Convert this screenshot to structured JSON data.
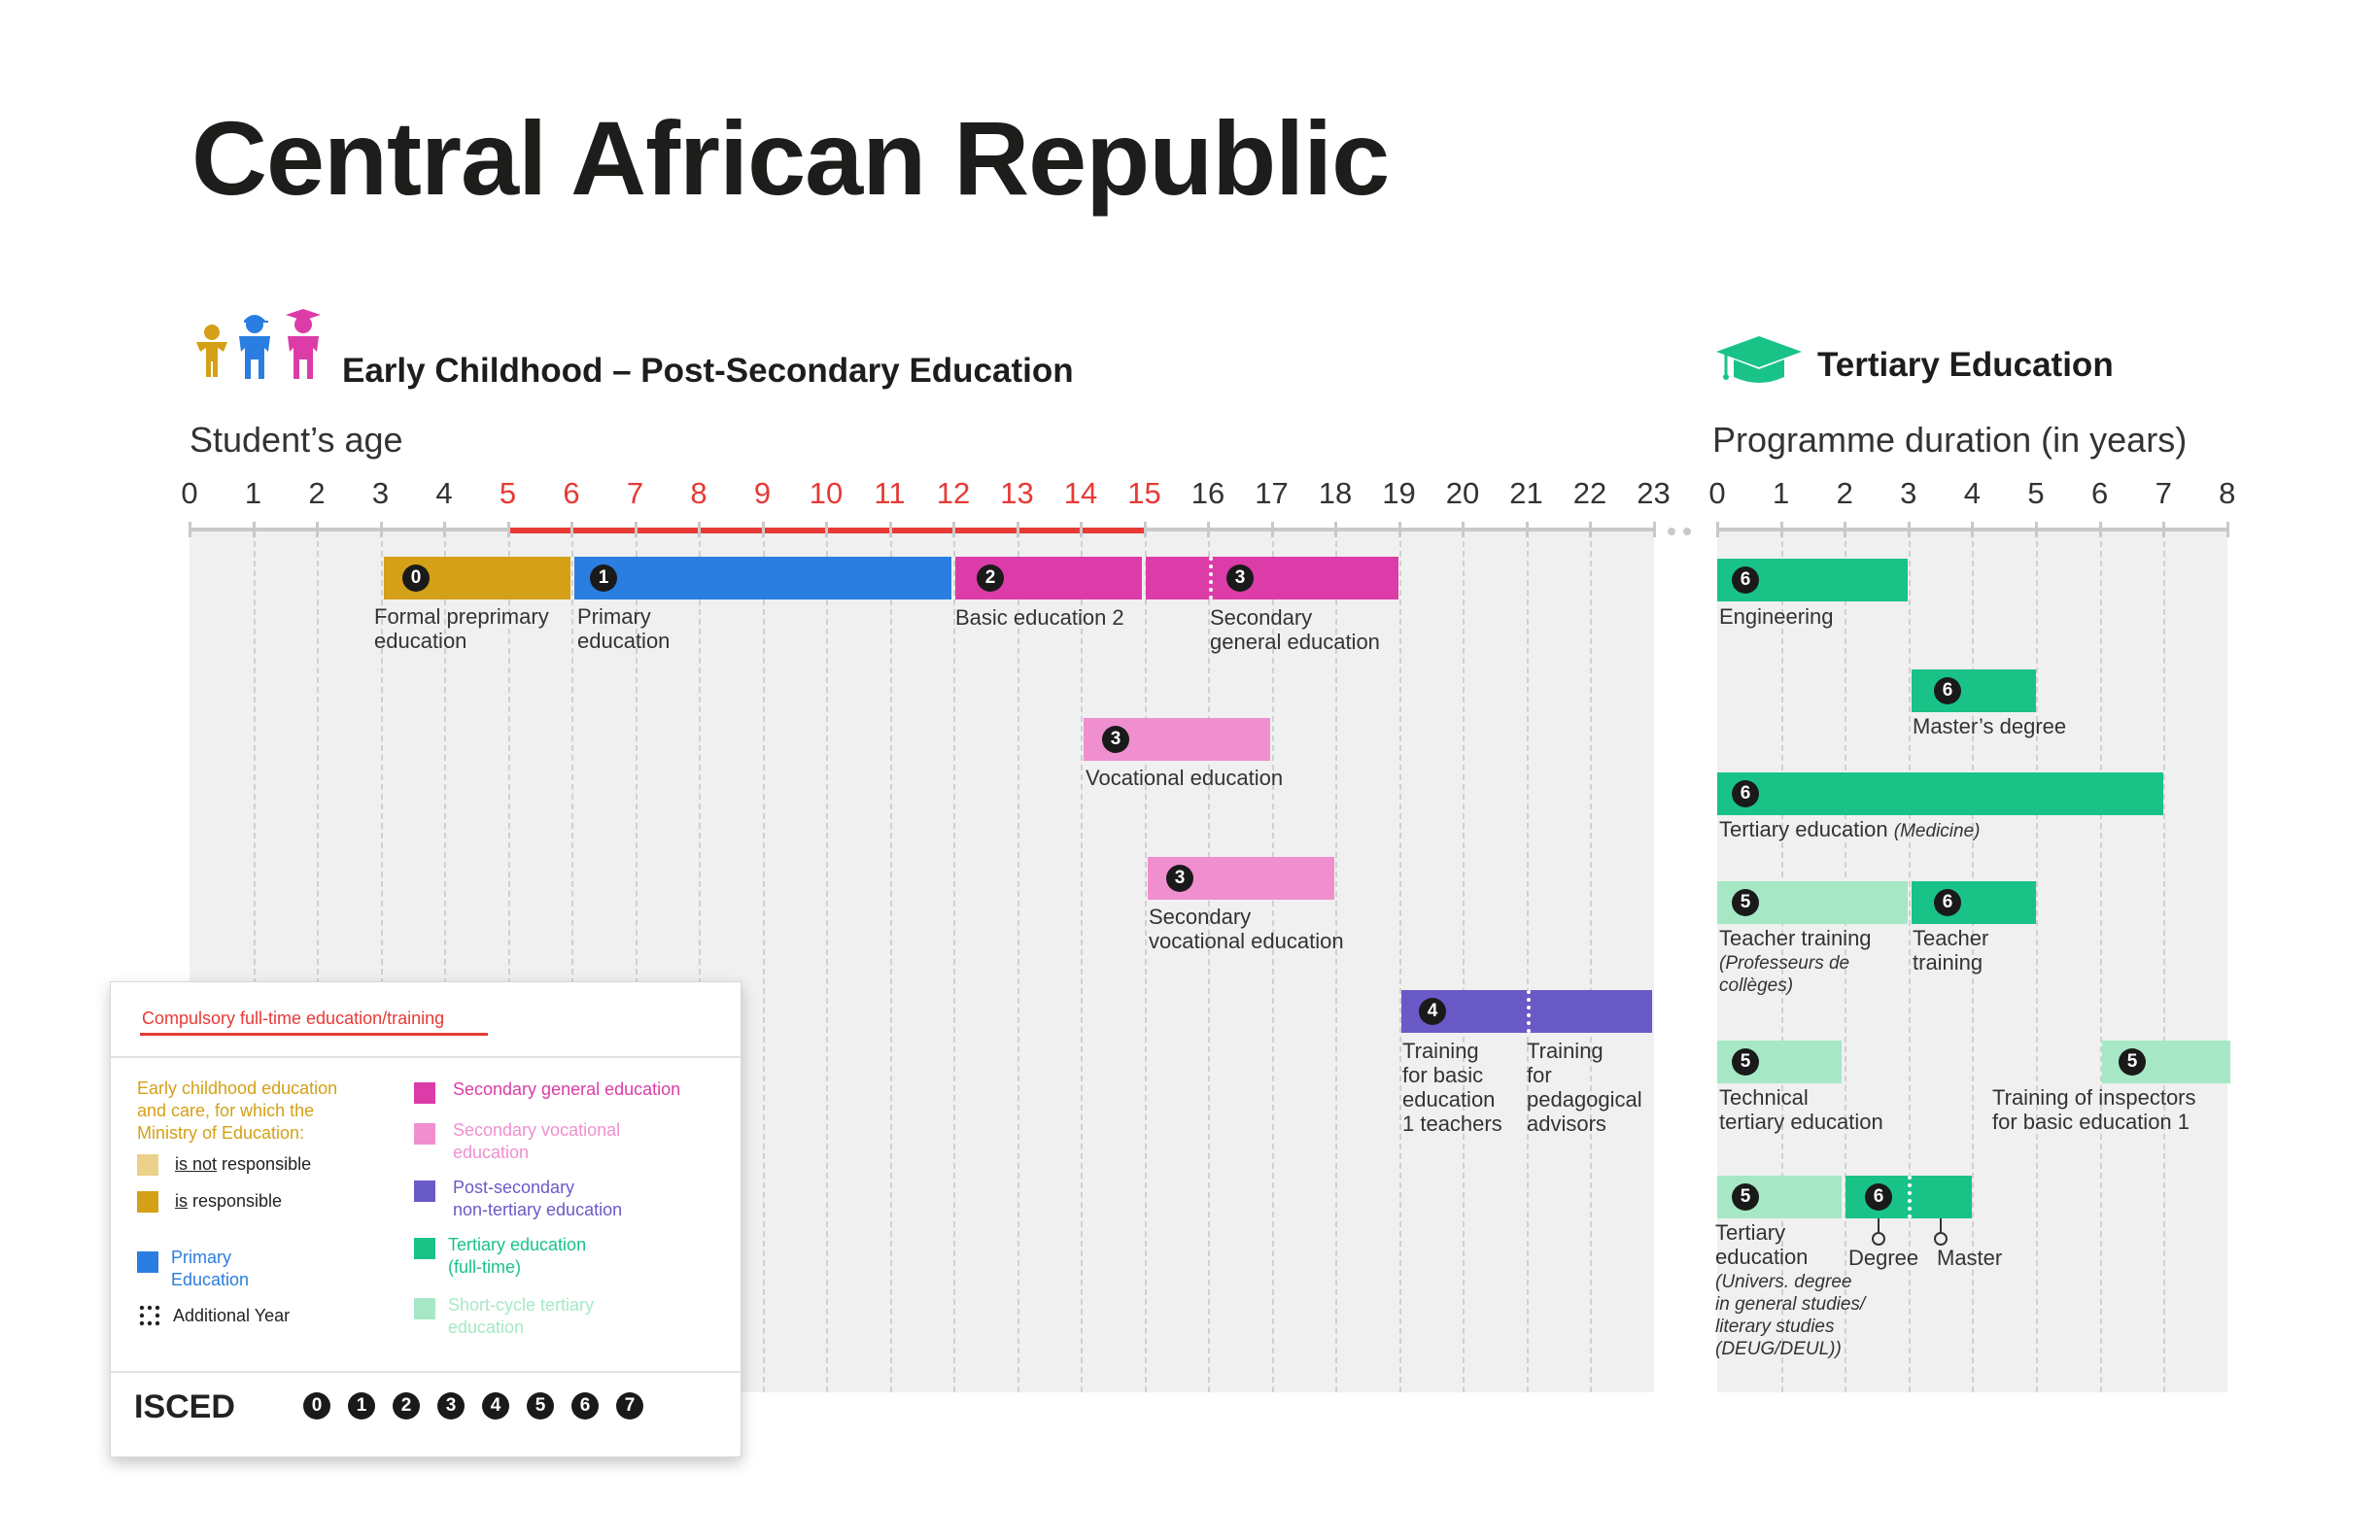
{
  "title": "Central African Republic",
  "sections": {
    "early": "Early Childhood – Post-Secondary Education",
    "tertiary": "Tertiary Education"
  },
  "axes": {
    "age_title": "Student’s age",
    "duration_title": "Programme duration (in years)",
    "age_ticks": [
      "0",
      "1",
      "2",
      "3",
      "4",
      "5",
      "6",
      "7",
      "8",
      "9",
      "10",
      "11",
      "12",
      "13",
      "14",
      "15",
      "16",
      "17",
      "18",
      "19",
      "20",
      "21",
      "22",
      "23"
    ],
    "duration_ticks": [
      "0",
      "1",
      "2",
      "3",
      "4",
      "5",
      "6",
      "7",
      "8"
    ],
    "compulsory_range": [
      5,
      15
    ]
  },
  "colors": {
    "preprimary": "#d4a017",
    "primary": "#2a7de1",
    "secondary_general": "#dc3ca8",
    "secondary_vocational": "#ef8fcf",
    "post_secondary": "#6a5ac8",
    "tertiary": "#19c388",
    "short_cycle": "#a6e8c6",
    "compulsory": "#e63a36",
    "preprimary_light": "#ebd08a"
  },
  "programmes": {
    "preprimary": {
      "isced": "0",
      "label": [
        "Formal preprimary",
        "education"
      ]
    },
    "primary": {
      "isced": "1",
      "label": [
        "Primary",
        "education"
      ]
    },
    "basic2": {
      "isced": "2",
      "label": [
        "Basic education 2"
      ]
    },
    "sec_general": {
      "isced": "3",
      "label": [
        "Secondary",
        "general education"
      ]
    },
    "vocational": {
      "isced": "3",
      "label": [
        "Vocational education"
      ]
    },
    "sec_vocational": {
      "isced": "3",
      "label": [
        "Secondary",
        "vocational education"
      ]
    },
    "teacher_basic": {
      "isced": "4",
      "label": [
        "Training",
        "for basic",
        "education",
        "1 teachers"
      ]
    },
    "teacher_ped": {
      "label": [
        "Training",
        "for",
        "pedagogical",
        "advisors"
      ]
    }
  },
  "tertiary": {
    "engineering": {
      "isced": "6",
      "label": "Engineering"
    },
    "masters": {
      "isced": "6",
      "label": "Master’s degree"
    },
    "medicine": {
      "isced": "6",
      "label": "Tertiary education",
      "note": "(Medicine)"
    },
    "teacher5": {
      "isced": "5",
      "label": "Teacher training",
      "note": [
        "(Professeurs de",
        "collèges)"
      ]
    },
    "teacher6": {
      "isced": "6",
      "label": [
        "Teacher",
        "training"
      ]
    },
    "technical": {
      "isced": "5",
      "label": [
        "Technical",
        "tertiary education"
      ]
    },
    "inspectors": {
      "isced": "5",
      "label": [
        "Training of inspectors",
        "for basic education 1"
      ]
    },
    "univ5": {
      "isced": "5",
      "label": [
        "Tertiary",
        "education"
      ],
      "note": [
        "(Univers. degree",
        "in general studies/",
        "literary studies",
        "(DEUG/DEUL))"
      ]
    },
    "univ6": {
      "isced": "6",
      "markers": [
        "Degree",
        "Master"
      ]
    }
  },
  "legend": {
    "compulsory": "Compulsory full-time education/training",
    "ecec_title": [
      "Early childhood education",
      "and care, for which the",
      "Ministry of Education:"
    ],
    "not_prefix": "is not",
    "not_suffix": " responsible",
    "is_prefix": "is",
    "is_suffix": " responsible",
    "primary": [
      "Primary",
      "Education"
    ],
    "additional": "Additional Year",
    "sec_general": "Secondary general education",
    "sec_vocational": [
      "Secondary vocational",
      "education"
    ],
    "post_secondary": [
      "Post-secondary",
      "non-tertiary education"
    ],
    "tertiary": [
      "Tertiary education",
      "(full-time)"
    ],
    "short_cycle": [
      "Short-cycle tertiary",
      "education"
    ],
    "isced": "ISCED",
    "isced_levels": [
      "0",
      "1",
      "2",
      "3",
      "4",
      "5",
      "6",
      "7"
    ]
  }
}
